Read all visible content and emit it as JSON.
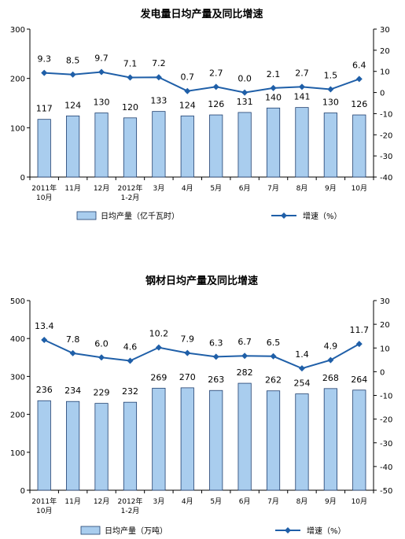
{
  "chart_data": [
    {
      "type": "bar",
      "title": "发电量日均产量及同比增速",
      "categories": [
        [
          "2011年",
          "10月"
        ],
        [
          "11月"
        ],
        [
          "12月"
        ],
        [
          "2012年",
          "1-2月"
        ],
        [
          "3月"
        ],
        [
          "4月"
        ],
        [
          "5月"
        ],
        [
          "6月"
        ],
        [
          "7月"
        ],
        [
          "8月"
        ],
        [
          "9月"
        ],
        [
          "10月"
        ]
      ],
      "series": [
        {
          "name": "日均产量（亿千瓦时）",
          "type": "bar",
          "axis": "left",
          "values": [
            117,
            124,
            130,
            120,
            133,
            124,
            126,
            131,
            140,
            141,
            130,
            126
          ]
        },
        {
          "name": "增速（%）",
          "type": "line",
          "axis": "right",
          "values": [
            9.3,
            8.5,
            9.7,
            7.1,
            7.2,
            0.7,
            2.7,
            0.0,
            2.1,
            2.7,
            1.5,
            6.4
          ],
          "labels": [
            "9.3",
            "8.5",
            "9.7",
            "7.1",
            "7.2",
            "0.7",
            "2.7",
            "0.0",
            "2.1",
            "2.7",
            "1.5",
            "6.4"
          ]
        }
      ],
      "y_left": {
        "min": 0,
        "max": 300,
        "ticks": [
          0,
          100,
          200,
          300
        ]
      },
      "y_right": {
        "min": -40,
        "max": 30,
        "ticks": [
          30,
          20,
          10,
          0,
          -10,
          -20,
          -30,
          -40
        ]
      },
      "colors": {
        "bar": "#a9cdee",
        "bar_stroke": "#1f3f6f",
        "line": "#1f5fa8"
      }
    },
    {
      "type": "bar",
      "title": "钢材日均产量及同比增速",
      "categories": [
        [
          "2011年",
          "10月"
        ],
        [
          "11月"
        ],
        [
          "12月"
        ],
        [
          "2012年",
          "1-2月"
        ],
        [
          "3月"
        ],
        [
          "4月"
        ],
        [
          "5月"
        ],
        [
          "6月"
        ],
        [
          "7月"
        ],
        [
          "8月"
        ],
        [
          "9月"
        ],
        [
          "10月"
        ]
      ],
      "series": [
        {
          "name": "日均产量（万吨）",
          "type": "bar",
          "axis": "left",
          "values": [
            236,
            234,
            229,
            232,
            269,
            270,
            263,
            282,
            262,
            254,
            268,
            264
          ]
        },
        {
          "name": "增速（%）",
          "type": "line",
          "axis": "right",
          "values": [
            13.4,
            7.8,
            6.0,
            4.6,
            10.2,
            7.9,
            6.3,
            6.7,
            6.5,
            1.4,
            4.9,
            11.7
          ],
          "labels": [
            "13.4",
            "7.8",
            "6.0",
            "4.6",
            "10.2",
            "7.9",
            "6.3",
            "6.7",
            "6.5",
            "1.4",
            "4.9",
            "11.7"
          ]
        }
      ],
      "y_left": {
        "min": 0,
        "max": 500,
        "ticks": [
          0,
          100,
          200,
          300,
          400,
          500
        ]
      },
      "y_right": {
        "min": -50,
        "max": 30,
        "ticks": [
          30,
          20,
          10,
          0,
          -10,
          -20,
          -30,
          -40,
          -50
        ]
      },
      "colors": {
        "bar": "#a9cdee",
        "bar_stroke": "#1f3f6f",
        "line": "#1f5fa8"
      }
    }
  ]
}
